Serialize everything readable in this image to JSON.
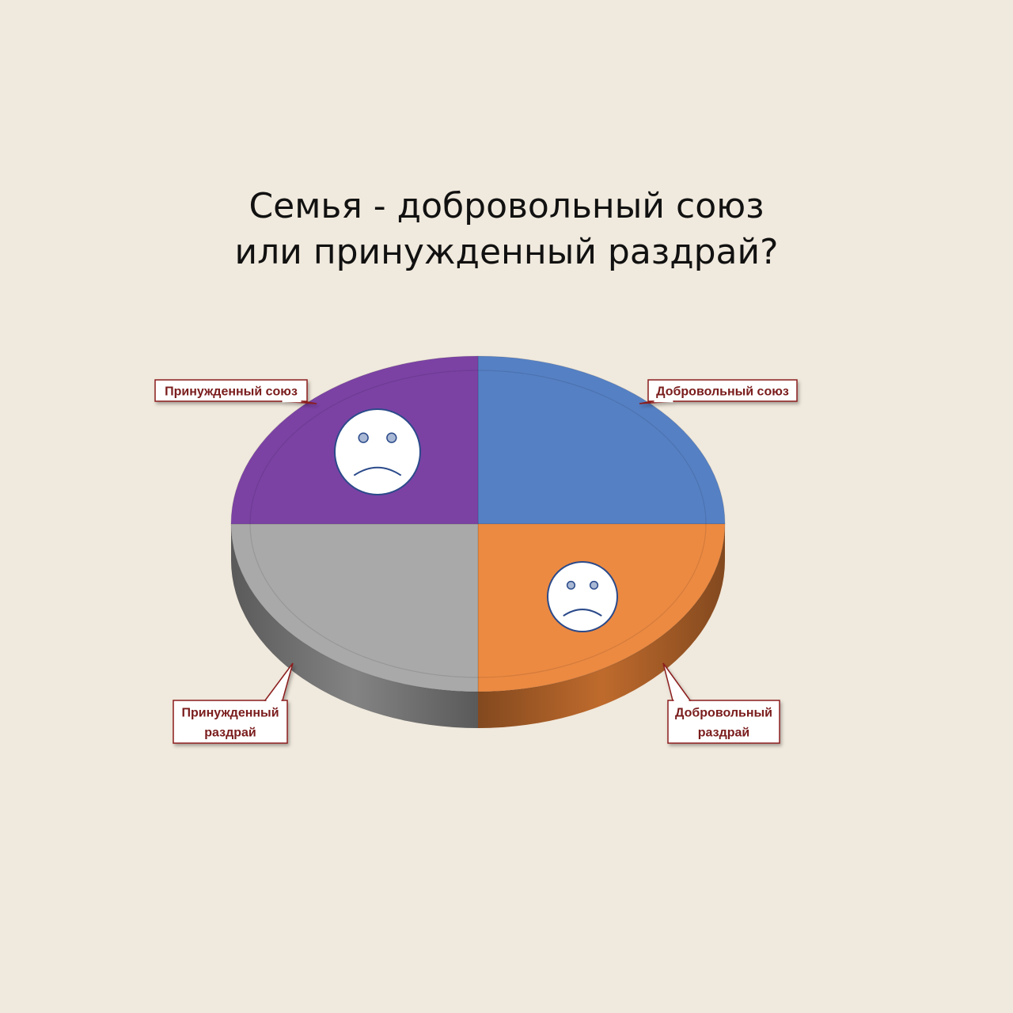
{
  "title": {
    "line1": "Семья - добровольный союз",
    "line2": "или принужденный раздрай?"
  },
  "chart_data": {
    "type": "pie",
    "style": "3d",
    "categories": [
      "Добровольный союз",
      "Добровольный раздрай",
      "Принужденный раздрай",
      "Принужденный союз"
    ],
    "values": [
      25,
      25,
      25,
      25
    ],
    "label_lines": [
      [
        "Добровольный союз"
      ],
      [
        "Добровольный",
        "раздрай"
      ],
      [
        "Принужденный",
        "раздрай"
      ],
      [
        "Принужденный союз"
      ]
    ],
    "colors": [
      "#5580c4",
      "#ec8a42",
      "#a9a9a9",
      "#7b42a4"
    ],
    "side_colors": [
      "#4a6fa8",
      "#c9702f",
      "#8a8a8a",
      "#5f3280"
    ],
    "icons": [
      {
        "slice": "Принужденный союз",
        "icon": "sad-face-icon"
      },
      {
        "slice": "Добровольный раздрай",
        "icon": "sad-face-icon"
      }
    ]
  },
  "colors": {
    "background": "#f0e9dd",
    "callout_border": "#8b1f1f",
    "callout_text": "#7a1a1a",
    "icon_stroke": "#2b4a8a"
  }
}
